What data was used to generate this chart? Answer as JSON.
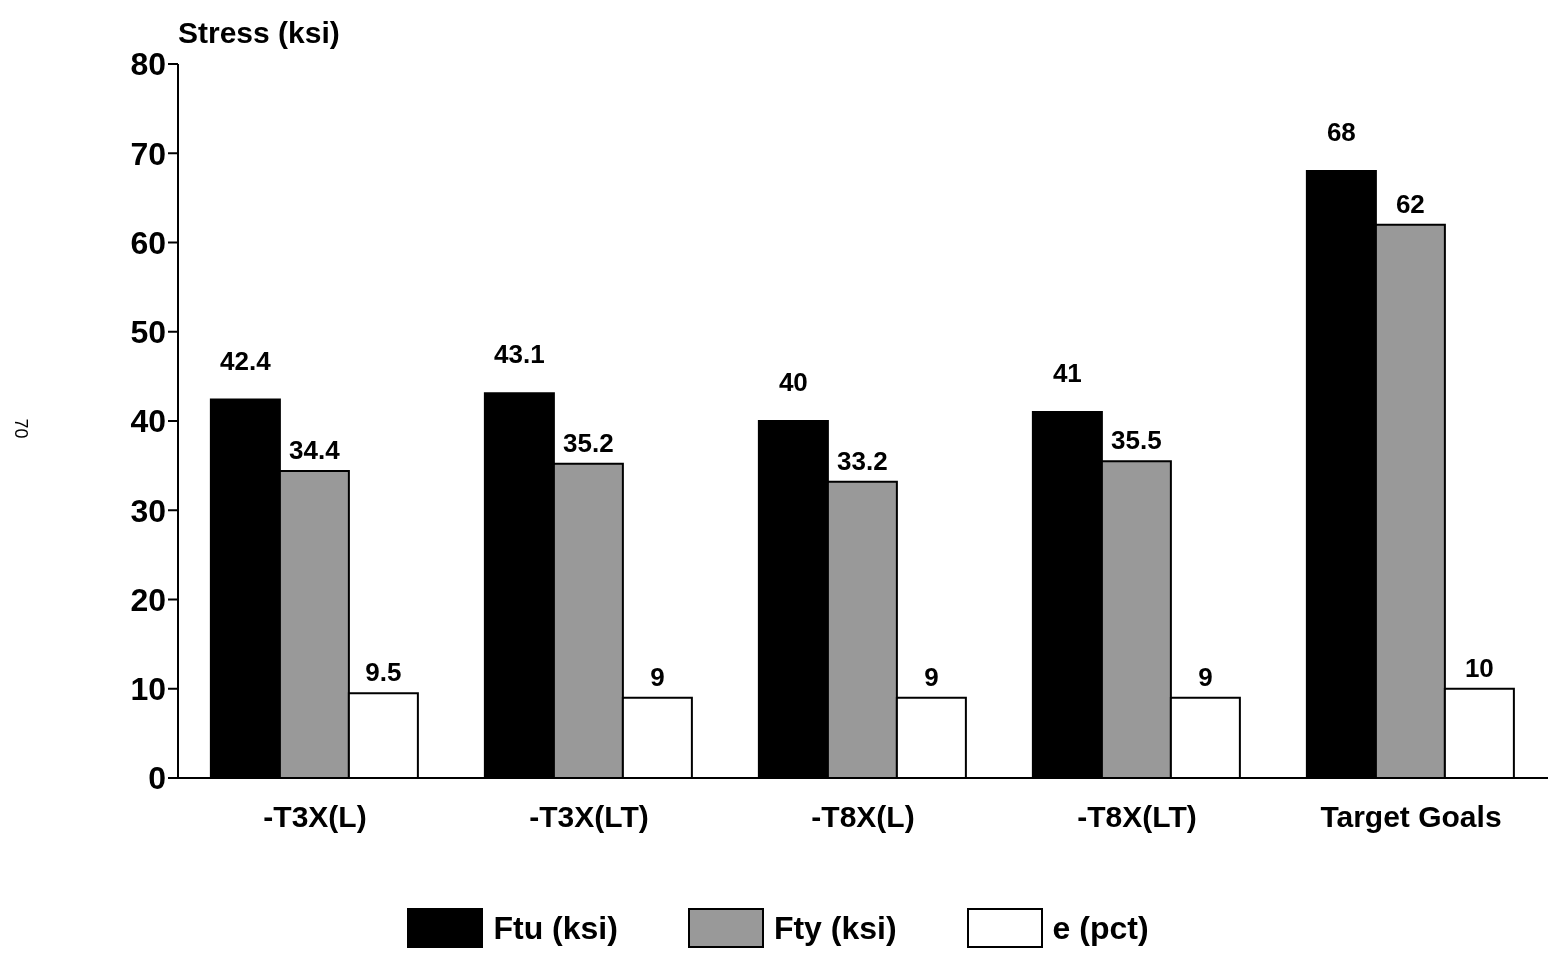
{
  "chart_data": {
    "type": "bar",
    "ylabel": "Stress (ksi)",
    "categories": [
      "-T3X(L)",
      "-T3X(LT)",
      "-T8X(L)",
      "-T8X(LT)",
      "Target Goals"
    ],
    "series": [
      {
        "name": "Ftu (ksi)",
        "color": "#000000",
        "values": [
          42.4,
          43.1,
          40,
          41,
          68
        ]
      },
      {
        "name": "Fty (ksi)",
        "color": "#999999",
        "values": [
          34.4,
          35.2,
          33.2,
          35.5,
          62
        ]
      },
      {
        "name": "e (pct)",
        "color": "#ffffff",
        "values": [
          9.5,
          9,
          9,
          9,
          10
        ]
      }
    ],
    "ylim": [
      0,
      80
    ],
    "yticks": [
      0,
      10,
      20,
      30,
      40,
      50,
      60,
      70,
      80
    ],
    "grid": false,
    "legend": "bottom",
    "data_labels": true,
    "annotations": [
      "70"
    ]
  }
}
